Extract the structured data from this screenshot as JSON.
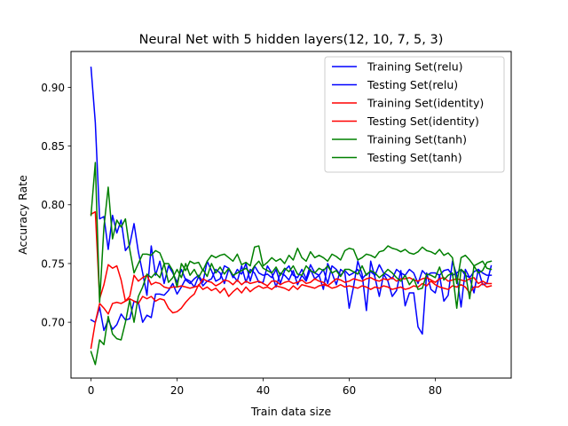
{
  "chart_data": {
    "type": "line",
    "title": "Neural Net with 5 hidden layers(12, 10, 7, 5, 3)",
    "xlabel": "Train data size",
    "ylabel": "Accuracy Rate",
    "xlim": [
      -4.65,
      97.65
    ],
    "ylim": [
      0.6525,
      0.9305
    ],
    "xticks": [
      0,
      20,
      40,
      60,
      80
    ],
    "xtick_labels": [
      "0",
      "20",
      "40",
      "60",
      "80"
    ],
    "yticks": [
      0.7,
      0.75,
      0.8,
      0.85,
      0.9
    ],
    "ytick_labels": [
      "0.70",
      "0.75",
      "0.80",
      "0.85",
      "0.90"
    ],
    "grid": false,
    "legend_position": "top-right",
    "series": [
      {
        "name": "Training Set(relu)",
        "color": "#0000ff",
        "x": [
          0,
          1,
          2,
          3,
          4,
          5,
          6,
          7,
          8,
          9,
          10,
          11,
          12,
          13,
          14,
          15,
          16,
          17,
          18,
          19,
          20,
          21,
          22,
          23,
          24,
          25,
          26,
          27,
          28,
          29,
          30,
          31,
          32,
          33,
          34,
          35,
          36,
          37,
          38,
          39,
          40,
          41,
          42,
          43,
          44,
          45,
          46,
          47,
          48,
          49,
          50,
          51,
          52,
          53,
          54,
          55,
          56,
          57,
          58,
          59,
          60,
          61,
          62,
          63,
          64,
          65,
          66,
          67,
          68,
          69,
          70,
          71,
          72,
          73,
          74,
          75,
          76,
          77,
          78,
          79,
          80,
          81,
          82,
          83,
          84,
          85,
          86,
          87,
          88,
          89,
          90,
          91,
          92,
          93
        ],
        "values": [
          0.917,
          0.87,
          0.788,
          0.79,
          0.762,
          0.791,
          0.776,
          0.787,
          0.761,
          0.766,
          0.784,
          0.76,
          0.742,
          0.723,
          0.765,
          0.74,
          0.752,
          0.733,
          0.748,
          0.742,
          0.734,
          0.745,
          0.736,
          0.733,
          0.737,
          0.74,
          0.734,
          0.752,
          0.744,
          0.735,
          0.737,
          0.748,
          0.746,
          0.738,
          0.745,
          0.741,
          0.75,
          0.735,
          0.748,
          0.742,
          0.74,
          0.741,
          0.738,
          0.745,
          0.733,
          0.744,
          0.748,
          0.74,
          0.738,
          0.745,
          0.737,
          0.749,
          0.742,
          0.74,
          0.745,
          0.733,
          0.748,
          0.745,
          0.74,
          0.744,
          0.74,
          0.742,
          0.745,
          0.737,
          0.741,
          0.743,
          0.74,
          0.749,
          0.742,
          0.74,
          0.737,
          0.745,
          0.742,
          0.74,
          0.745,
          0.742,
          0.733,
          0.744,
          0.74,
          0.742,
          0.742,
          0.74,
          0.744,
          0.745,
          0.74,
          0.742,
          0.745,
          0.74,
          0.738,
          0.743,
          0.745,
          0.742,
          0.74,
          0.74
        ]
      },
      {
        "name": "Testing Set(relu)",
        "color": "#0000ff",
        "x": [
          0,
          1,
          2,
          3,
          4,
          5,
          6,
          7,
          8,
          9,
          10,
          11,
          12,
          13,
          14,
          15,
          16,
          17,
          18,
          19,
          20,
          21,
          22,
          23,
          24,
          25,
          26,
          27,
          28,
          29,
          30,
          31,
          32,
          33,
          34,
          35,
          36,
          37,
          38,
          39,
          40,
          41,
          42,
          43,
          44,
          45,
          46,
          47,
          48,
          49,
          50,
          51,
          52,
          53,
          54,
          55,
          56,
          57,
          58,
          59,
          60,
          61,
          62,
          63,
          64,
          65,
          66,
          67,
          68,
          69,
          70,
          71,
          72,
          73,
          74,
          75,
          76,
          77,
          78,
          79,
          80,
          81,
          82,
          83,
          84,
          85,
          86,
          87,
          88,
          89,
          90,
          91,
          92,
          93
        ],
        "values": [
          0.702,
          0.7,
          0.713,
          0.693,
          0.702,
          0.694,
          0.698,
          0.707,
          0.702,
          0.703,
          0.718,
          0.717,
          0.7,
          0.706,
          0.704,
          0.724,
          0.724,
          0.723,
          0.727,
          0.733,
          0.724,
          0.73,
          0.737,
          0.735,
          0.73,
          0.739,
          0.731,
          0.735,
          0.737,
          0.745,
          0.742,
          0.733,
          0.745,
          0.74,
          0.735,
          0.748,
          0.734,
          0.745,
          0.742,
          0.734,
          0.734,
          0.748,
          0.742,
          0.73,
          0.742,
          0.74,
          0.736,
          0.744,
          0.732,
          0.74,
          0.735,
          0.745,
          0.737,
          0.74,
          0.728,
          0.75,
          0.742,
          0.732,
          0.745,
          0.742,
          0.712,
          0.73,
          0.752,
          0.741,
          0.71,
          0.752,
          0.738,
          0.722,
          0.741,
          0.735,
          0.722,
          0.727,
          0.744,
          0.714,
          0.725,
          0.725,
          0.696,
          0.69,
          0.742,
          0.728,
          0.725,
          0.74,
          0.718,
          0.723,
          0.752,
          0.74,
          0.713,
          0.745,
          0.738,
          0.725,
          0.745,
          0.732,
          0.733,
          0.748
        ]
      },
      {
        "name": "Training Set(identity)",
        "color": "#ff0000",
        "x": [
          0,
          1,
          2,
          3,
          4,
          5,
          6,
          7,
          8,
          9,
          10,
          11,
          12,
          13,
          14,
          15,
          16,
          17,
          18,
          19,
          20,
          21,
          22,
          23,
          24,
          25,
          26,
          27,
          28,
          29,
          30,
          31,
          32,
          33,
          34,
          35,
          36,
          37,
          38,
          39,
          40,
          41,
          42,
          43,
          44,
          45,
          46,
          47,
          48,
          49,
          50,
          51,
          52,
          53,
          54,
          55,
          56,
          57,
          58,
          59,
          60,
          61,
          62,
          63,
          64,
          65,
          66,
          67,
          68,
          69,
          70,
          71,
          72,
          73,
          74,
          75,
          76,
          77,
          78,
          79,
          80,
          81,
          82,
          83,
          84,
          85,
          86,
          87,
          88,
          89,
          90,
          91,
          92,
          93
        ],
        "values": [
          0.792,
          0.794,
          0.72,
          0.732,
          0.749,
          0.746,
          0.748,
          0.736,
          0.718,
          0.722,
          0.74,
          0.735,
          0.738,
          0.74,
          0.732,
          0.734,
          0.733,
          0.73,
          0.729,
          0.73,
          0.73,
          0.731,
          0.73,
          0.729,
          0.73,
          0.731,
          0.737,
          0.735,
          0.734,
          0.731,
          0.733,
          0.736,
          0.735,
          0.732,
          0.736,
          0.732,
          0.735,
          0.733,
          0.734,
          0.735,
          0.733,
          0.731,
          0.735,
          0.735,
          0.732,
          0.734,
          0.735,
          0.733,
          0.734,
          0.736,
          0.733,
          0.734,
          0.737,
          0.735,
          0.734,
          0.731,
          0.734,
          0.737,
          0.736,
          0.734,
          0.735,
          0.737,
          0.736,
          0.735,
          0.737,
          0.738,
          0.736,
          0.735,
          0.737,
          0.736,
          0.738,
          0.735,
          0.737,
          0.737,
          0.738,
          0.736,
          0.735,
          0.737,
          0.738,
          0.736,
          0.734,
          0.737,
          0.738,
          0.735,
          0.736,
          0.737,
          0.736,
          0.735,
          0.737,
          0.738,
          0.733,
          0.735,
          0.733,
          0.733
        ]
      },
      {
        "name": "Testing Set(identity)",
        "color": "#ff0000",
        "x": [
          0,
          1,
          2,
          3,
          4,
          5,
          6,
          7,
          8,
          9,
          10,
          11,
          12,
          13,
          14,
          15,
          16,
          17,
          18,
          19,
          20,
          21,
          22,
          23,
          24,
          25,
          26,
          27,
          28,
          29,
          30,
          31,
          32,
          33,
          34,
          35,
          36,
          37,
          38,
          39,
          40,
          41,
          42,
          43,
          44,
          45,
          46,
          47,
          48,
          49,
          50,
          51,
          52,
          53,
          54,
          55,
          56,
          57,
          58,
          59,
          60,
          61,
          62,
          63,
          64,
          65,
          66,
          67,
          68,
          69,
          70,
          71,
          72,
          73,
          74,
          75,
          76,
          77,
          78,
          79,
          80,
          81,
          82,
          83,
          84,
          85,
          86,
          87,
          88,
          89,
          90,
          91,
          92,
          93
        ],
        "values": [
          0.678,
          0.7,
          0.716,
          0.712,
          0.707,
          0.716,
          0.717,
          0.716,
          0.718,
          0.72,
          0.718,
          0.716,
          0.722,
          0.72,
          0.722,
          0.718,
          0.72,
          0.719,
          0.712,
          0.708,
          0.709,
          0.712,
          0.717,
          0.721,
          0.724,
          0.732,
          0.728,
          0.73,
          0.727,
          0.729,
          0.725,
          0.729,
          0.722,
          0.726,
          0.729,
          0.725,
          0.73,
          0.726,
          0.729,
          0.731,
          0.729,
          0.73,
          0.728,
          0.731,
          0.73,
          0.729,
          0.727,
          0.731,
          0.728,
          0.732,
          0.731,
          0.73,
          0.729,
          0.731,
          0.732,
          0.731,
          0.729,
          0.73,
          0.732,
          0.73,
          0.731,
          0.73,
          0.729,
          0.731,
          0.73,
          0.728,
          0.73,
          0.729,
          0.731,
          0.73,
          0.728,
          0.729,
          0.73,
          0.728,
          0.729,
          0.731,
          0.73,
          0.733,
          0.731,
          0.735,
          0.732,
          0.73,
          0.729,
          0.728,
          0.731,
          0.73,
          0.732,
          0.73,
          0.725,
          0.73,
          0.73,
          0.733,
          0.73,
          0.731
        ]
      },
      {
        "name": "Training Set(tanh)",
        "color": "#008000",
        "x": [
          0,
          1,
          2,
          3,
          4,
          5,
          6,
          7,
          8,
          9,
          10,
          11,
          12,
          13,
          14,
          15,
          16,
          17,
          18,
          19,
          20,
          21,
          22,
          23,
          24,
          25,
          26,
          27,
          28,
          29,
          30,
          31,
          32,
          33,
          34,
          35,
          36,
          37,
          38,
          39,
          40,
          41,
          42,
          43,
          44,
          45,
          46,
          47,
          48,
          49,
          50,
          51,
          52,
          53,
          54,
          55,
          56,
          57,
          58,
          59,
          60,
          61,
          62,
          63,
          64,
          65,
          66,
          67,
          68,
          69,
          70,
          71,
          72,
          73,
          74,
          75,
          76,
          77,
          78,
          79,
          80,
          81,
          82,
          83,
          84,
          85,
          86,
          87,
          88,
          89,
          90,
          91,
          92,
          93
        ],
        "values": [
          0.791,
          0.836,
          0.717,
          0.781,
          0.815,
          0.771,
          0.787,
          0.781,
          0.788,
          0.762,
          0.742,
          0.75,
          0.758,
          0.758,
          0.757,
          0.761,
          0.759,
          0.75,
          0.75,
          0.744,
          0.73,
          0.75,
          0.744,
          0.752,
          0.75,
          0.751,
          0.744,
          0.752,
          0.757,
          0.755,
          0.757,
          0.758,
          0.755,
          0.752,
          0.758,
          0.749,
          0.751,
          0.748,
          0.764,
          0.765,
          0.748,
          0.751,
          0.755,
          0.752,
          0.754,
          0.75,
          0.757,
          0.753,
          0.763,
          0.755,
          0.752,
          0.76,
          0.755,
          0.757,
          0.755,
          0.752,
          0.758,
          0.756,
          0.753,
          0.761,
          0.763,
          0.762,
          0.753,
          0.755,
          0.758,
          0.757,
          0.755,
          0.76,
          0.761,
          0.765,
          0.763,
          0.762,
          0.76,
          0.762,
          0.759,
          0.758,
          0.76,
          0.764,
          0.761,
          0.76,
          0.758,
          0.762,
          0.757,
          0.759,
          0.755,
          0.733,
          0.755,
          0.757,
          0.753,
          0.748,
          0.75,
          0.752,
          0.746,
          0.745
        ]
      },
      {
        "name": "Testing Set(tanh)",
        "color": "#008000",
        "x": [
          0,
          1,
          2,
          3,
          4,
          5,
          6,
          7,
          8,
          9,
          10,
          11,
          12,
          13,
          14,
          15,
          16,
          17,
          18,
          19,
          20,
          21,
          22,
          23,
          24,
          25,
          26,
          27,
          28,
          29,
          30,
          31,
          32,
          33,
          34,
          35,
          36,
          37,
          38,
          39,
          40,
          41,
          42,
          43,
          44,
          45,
          46,
          47,
          48,
          49,
          50,
          51,
          52,
          53,
          54,
          55,
          56,
          57,
          58,
          59,
          60,
          61,
          62,
          63,
          64,
          65,
          66,
          67,
          68,
          69,
          70,
          71,
          72,
          73,
          74,
          75,
          76,
          77,
          78,
          79,
          80,
          81,
          82,
          83,
          84,
          85,
          86,
          87,
          88,
          89,
          90,
          91,
          92,
          93
        ],
        "values": [
          0.675,
          0.664,
          0.685,
          0.681,
          0.705,
          0.69,
          0.686,
          0.685,
          0.7,
          0.719,
          0.7,
          0.722,
          0.73,
          0.741,
          0.738,
          0.742,
          0.738,
          0.75,
          0.734,
          0.738,
          0.745,
          0.738,
          0.75,
          0.74,
          0.745,
          0.738,
          0.745,
          0.739,
          0.75,
          0.742,
          0.747,
          0.741,
          0.746,
          0.74,
          0.742,
          0.744,
          0.746,
          0.742,
          0.748,
          0.752,
          0.746,
          0.744,
          0.742,
          0.747,
          0.74,
          0.746,
          0.743,
          0.748,
          0.741,
          0.74,
          0.748,
          0.744,
          0.742,
          0.746,
          0.744,
          0.748,
          0.742,
          0.744,
          0.739,
          0.745,
          0.745,
          0.743,
          0.741,
          0.748,
          0.74,
          0.744,
          0.742,
          0.738,
          0.741,
          0.745,
          0.742,
          0.738,
          0.735,
          0.74,
          0.732,
          0.737,
          0.728,
          0.729,
          0.741,
          0.74,
          0.738,
          0.747,
          0.736,
          0.74,
          0.742,
          0.712,
          0.745,
          0.742,
          0.72,
          0.748,
          0.742,
          0.744,
          0.751,
          0.752
        ]
      }
    ]
  }
}
